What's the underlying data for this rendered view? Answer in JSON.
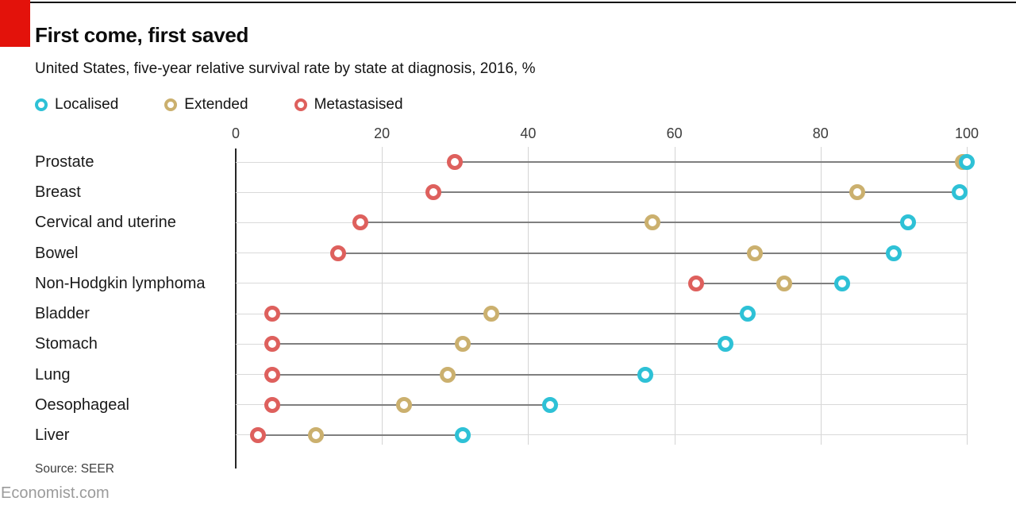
{
  "header": {
    "title": "First come, first saved",
    "subtitle": "United States, five-year relative survival rate by state at diagnosis, 2016, %"
  },
  "footer": {
    "source": "Source: SEER",
    "site": "Economist.com"
  },
  "brand": {
    "accent_red": "#E3120B"
  },
  "chart_data": {
    "type": "scatter",
    "subtype": "dumbbell-dot-plot",
    "title": "First come, first saved",
    "xlabel": "",
    "ylabel": "",
    "xlim": [
      0,
      100
    ],
    "x_ticks": [
      0,
      20,
      40,
      60,
      80,
      100
    ],
    "grid": "vertical-only",
    "legend_position": "top-left",
    "categories": [
      "Prostate",
      "Breast",
      "Cervical and uterine",
      "Bowel",
      "Non-Hodgkin lymphoma",
      "Bladder",
      "Stomach",
      "Lung",
      "Oesophageal",
      "Liver"
    ],
    "series": [
      {
        "name": "Localised",
        "color": "#2EC1D6",
        "values": [
          100,
          99,
          92,
          90,
          83,
          70,
          67,
          56,
          43,
          31
        ]
      },
      {
        "name": "Extended",
        "color": "#CBB06E",
        "values": [
          100,
          85,
          57,
          71,
          75,
          35,
          31,
          29,
          23,
          11
        ]
      },
      {
        "name": "Metastasised",
        "color": "#DE605D",
        "values": [
          30,
          27,
          17,
          14,
          63,
          5,
          5,
          5,
          5,
          3
        ]
      }
    ]
  }
}
